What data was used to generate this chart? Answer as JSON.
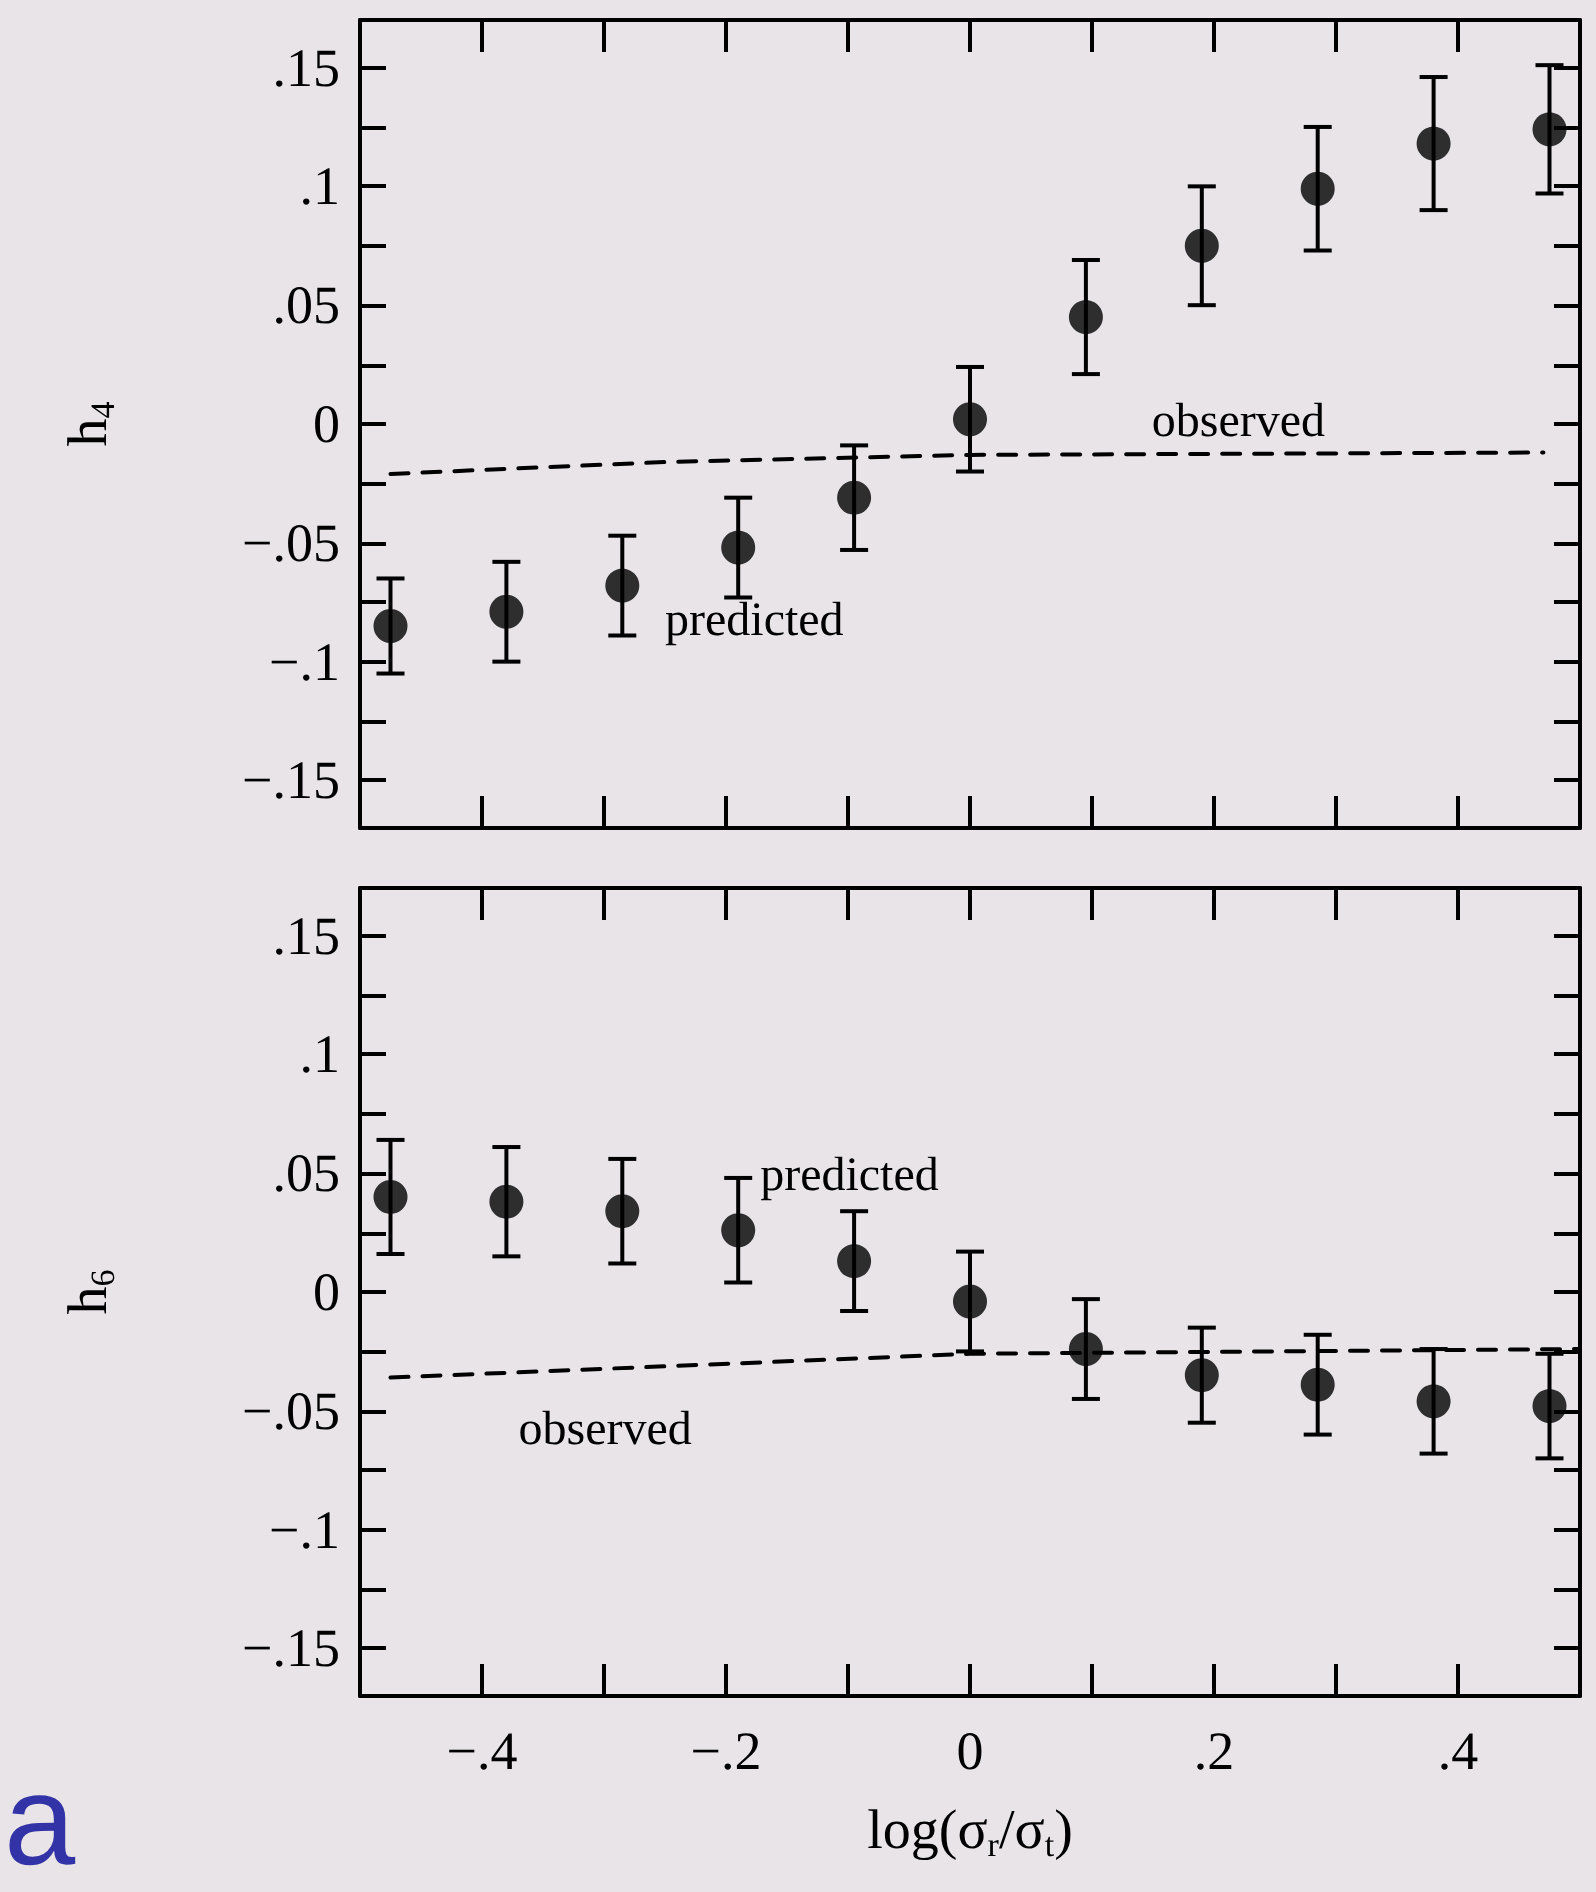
{
  "chart_data": [
    {
      "type": "scatter",
      "ylabel": "h$_{4}$",
      "tick_labels": "y",
      "grid": false,
      "marker": "circle",
      "xlim": [
        -0.5,
        0.5
      ],
      "ylim": [
        -0.17,
        0.17
      ],
      "xticks": [
        {
          "value": -0.4,
          "label": null
        },
        {
          "value": -0.3,
          "label": null
        },
        {
          "value": -0.2,
          "label": null
        },
        {
          "value": -0.1,
          "label": null
        },
        {
          "value": 0,
          "label": null
        },
        {
          "value": 0.1,
          "label": null
        },
        {
          "value": 0.2,
          "label": null
        },
        {
          "value": 0.3,
          "label": null
        },
        {
          "value": 0.4,
          "label": null
        }
      ],
      "yticks": [
        {
          "value": -0.15,
          "label": "−.15"
        },
        {
          "value": -0.125,
          "label": null
        },
        {
          "value": -0.1,
          "label": "−.1"
        },
        {
          "value": -0.075,
          "label": null
        },
        {
          "value": -0.05,
          "label": "−.05"
        },
        {
          "value": -0.025,
          "label": null
        },
        {
          "value": 0,
          "label": "0"
        },
        {
          "value": 0.025,
          "label": null
        },
        {
          "value": 0.05,
          "label": ".05"
        },
        {
          "value": 0.075,
          "label": null
        },
        {
          "value": 0.1,
          "label": ".1"
        },
        {
          "value": 0.125,
          "label": null
        },
        {
          "value": 0.15,
          "label": ".15"
        }
      ],
      "series": [
        {
          "type": "scatter",
          "name": "predicted",
          "color": "#000000",
          "x": [
            -0.475,
            -0.38,
            -0.285,
            -0.19,
            -0.095,
            0,
            0.095,
            0.19,
            0.285,
            0.38,
            0.475
          ],
          "values": [
            -0.085,
            -0.079,
            -0.068,
            -0.052,
            -0.031,
            0.002,
            0.045,
            0.075,
            0.099,
            0.118,
            0.124
          ],
          "errors": [
            0.02,
            0.021,
            0.021,
            0.021,
            0.022,
            0.022,
            0.024,
            0.025,
            0.026,
            0.028,
            0.027
          ]
        },
        {
          "type": "line",
          "name": "observed",
          "color": "#000000",
          "line_style": "dashed",
          "marker": "none",
          "x": [
            -0.475,
            -0.25,
            0,
            0.47
          ],
          "values": [
            -0.021,
            -0.016,
            -0.013,
            -0.012
          ]
        }
      ]
    },
    {
      "type": "scatter",
      "ylabel": "h$_{6}$",
      "xlabel": "log(σ$_{r}$/σ$_{t}$)",
      "grid": false,
      "marker": "circle",
      "xlim": [
        -0.5,
        0.5
      ],
      "ylim": [
        -0.17,
        0.17
      ],
      "xticks": [
        {
          "value": -0.4,
          "label": "−.4"
        },
        {
          "value": -0.3,
          "label": null
        },
        {
          "value": -0.2,
          "label": "−.2"
        },
        {
          "value": -0.1,
          "label": null
        },
        {
          "value": 0,
          "label": "0"
        },
        {
          "value": 0.1,
          "label": null
        },
        {
          "value": 0.2,
          "label": ".2"
        },
        {
          "value": 0.3,
          "label": null
        },
        {
          "value": 0.4,
          "label": ".4"
        }
      ],
      "yticks": [
        {
          "value": -0.15,
          "label": "−.15"
        },
        {
          "value": -0.125,
          "label": null
        },
        {
          "value": -0.1,
          "label": "−.1"
        },
        {
          "value": -0.075,
          "label": null
        },
        {
          "value": -0.05,
          "label": "−.05"
        },
        {
          "value": -0.025,
          "label": null
        },
        {
          "value": 0,
          "label": "0"
        },
        {
          "value": 0.025,
          "label": null
        },
        {
          "value": 0.05,
          "label": ".05"
        },
        {
          "value": 0.075,
          "label": null
        },
        {
          "value": 0.1,
          "label": ".1"
        },
        {
          "value": 0.125,
          "label": null
        },
        {
          "value": 0.15,
          "label": ".15"
        }
      ],
      "series": [
        {
          "type": "scatter",
          "name": "predicted",
          "color": "#000000",
          "x": [
            -0.475,
            -0.38,
            -0.285,
            -0.19,
            -0.095,
            0,
            0.095,
            0.19,
            0.285,
            0.38,
            0.475
          ],
          "values": [
            0.04,
            0.038,
            0.034,
            0.026,
            0.013,
            -0.004,
            -0.024,
            -0.035,
            -0.039,
            -0.046,
            -0.048
          ],
          "errors": [
            0.024,
            0.023,
            0.022,
            0.022,
            0.021,
            0.021,
            0.021,
            0.02,
            0.021,
            0.022,
            0.022
          ]
        },
        {
          "type": "line",
          "name": "observed",
          "color": "#000000",
          "line_style": "dashed",
          "marker": "none",
          "x": [
            -0.475,
            0,
            0.5
          ],
          "values": [
            -0.036,
            -0.026,
            -0.024
          ]
        }
      ],
      "annotations": [
        "a"
      ]
    }
  ]
}
